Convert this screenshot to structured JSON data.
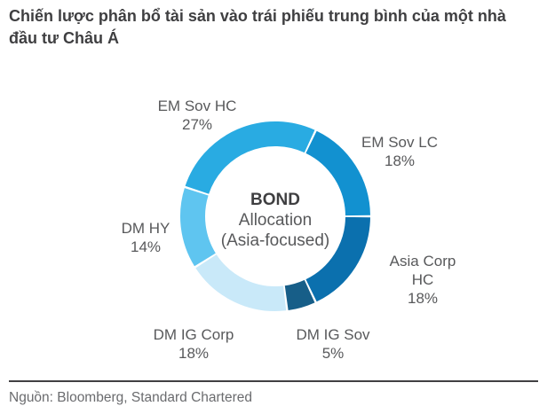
{
  "title": "Chiến lược phân bổ tài sản vào trái phiếu trung bình của một nhà đầu tư Châu Á",
  "center_label": {
    "line1": "BOND",
    "line2": "Allocation",
    "line3": "(Asia-focused)"
  },
  "source": "Nguồn: Bloomberg, Standard Chartered",
  "chart_data": {
    "type": "pie",
    "subtype": "donut",
    "title": "BOND Allocation (Asia-focused)",
    "categories": [
      "EM Sov HC",
      "EM Sov LC",
      "Asia Corp HC",
      "DM IG Sov",
      "DM IG Corp",
      "DM HY"
    ],
    "values": [
      27,
      18,
      18,
      5,
      18,
      14
    ],
    "pct_labels": [
      "27%",
      "18%",
      "18%",
      "5%",
      "18%",
      "14%"
    ],
    "unit": "%",
    "segment_colors": [
      "#29ABE2",
      "#1291D0",
      "#0B70AE",
      "#175E88",
      "#C9E9F9",
      "#5FC5F0"
    ],
    "start_angle_deg": -72,
    "direction": "clockwise",
    "legend": "none",
    "labels_position": "outside"
  },
  "colors": {
    "title_text": "#3F3F41",
    "label_text": "#58595B",
    "source_text": "#6A6B6E",
    "divider": "#414042",
    "background": "#FFFFFF"
  }
}
